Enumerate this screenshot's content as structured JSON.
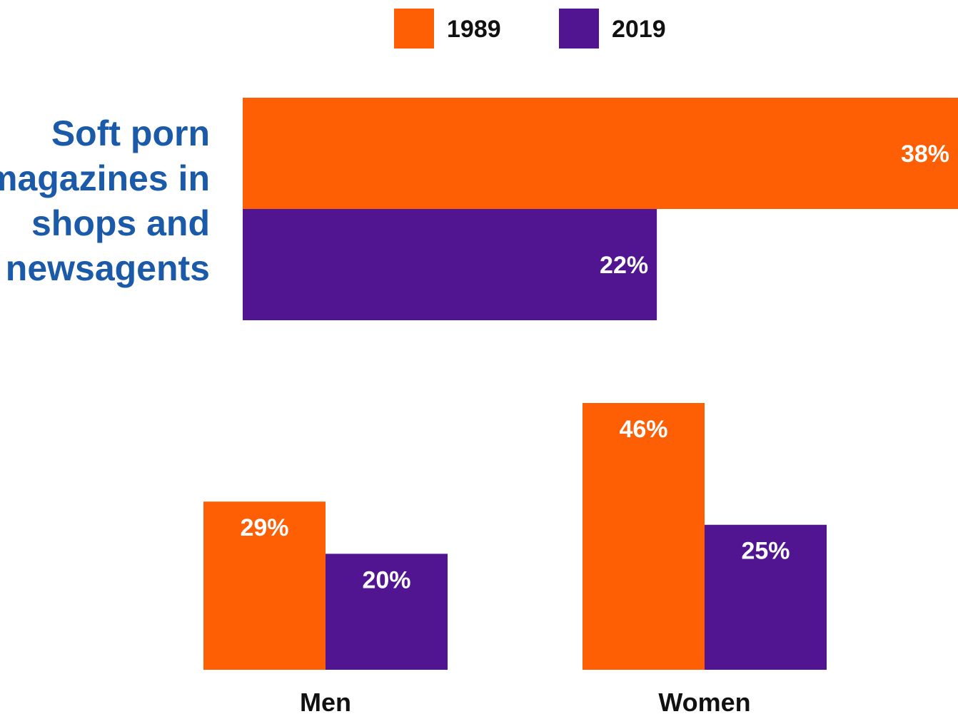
{
  "colors": {
    "series_1989": "#ff5f04",
    "series_2019": "#521591",
    "title": "#1a5aa8",
    "text": "#111111",
    "label": "#ffffff"
  },
  "legend": {
    "items": [
      {
        "label": "1989",
        "color": "#ff5f04"
      },
      {
        "label": "2019",
        "color": "#521591"
      }
    ]
  },
  "chart_data": [
    {
      "type": "bar",
      "orientation": "horizontal",
      "title": "Soft porn magazines in shops and newsagents",
      "title_lines": [
        "Soft porn",
        "magazines in",
        "shops and",
        "newsagents"
      ],
      "series": [
        {
          "name": "1989",
          "values": [
            38
          ],
          "labels": [
            "38%"
          ]
        },
        {
          "name": "2019",
          "values": [
            22
          ],
          "labels": [
            "22%"
          ]
        }
      ],
      "xlim": [
        0,
        38
      ],
      "units": "%",
      "grid": false,
      "legend": "top-center"
    },
    {
      "type": "bar",
      "orientation": "vertical",
      "categories": [
        "Men",
        "Women"
      ],
      "series": [
        {
          "name": "1989",
          "values": [
            29,
            46
          ],
          "labels": [
            "29%",
            "46%"
          ]
        },
        {
          "name": "2019",
          "values": [
            20,
            25
          ],
          "labels": [
            "20%",
            "25%"
          ]
        }
      ],
      "ylim": [
        0,
        46
      ],
      "units": "%",
      "grid": false
    }
  ]
}
